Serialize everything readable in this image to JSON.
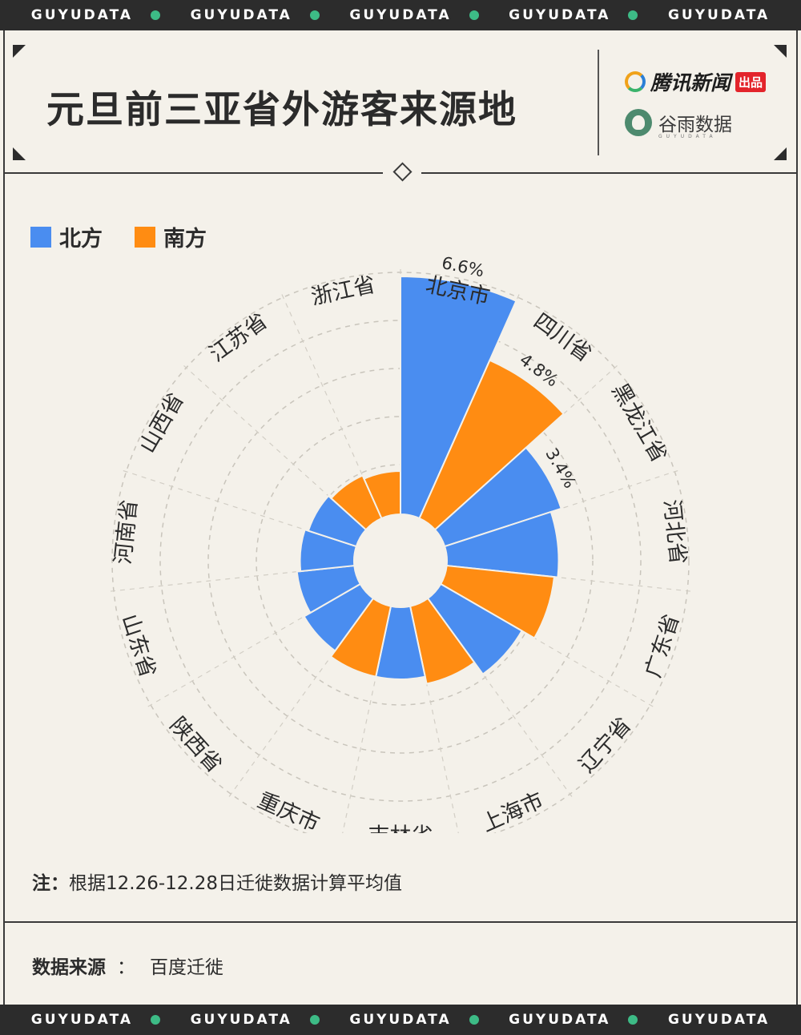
{
  "band_text": "GUYUDATA",
  "title": "元旦前三亚省外游客来源地",
  "logos": {
    "tencent": "腾讯新闻",
    "tencent_tag": "出品",
    "guyu": "谷雨数据",
    "guyu_sub": "GUYUDATA"
  },
  "colors": {
    "north": "#4a8df0",
    "south": "#ff8c12",
    "bg": "#f4f1ea",
    "band": "#2c2c2c",
    "band_dot": "#3dbb86"
  },
  "legend": [
    {
      "label": "北方",
      "color": "#4a8df0"
    },
    {
      "label": "南方",
      "color": "#ff8c12"
    }
  ],
  "chart_data": {
    "type": "polar-bar",
    "title": "元旦前三亚省外游客来源地",
    "unit": "%",
    "categories": [
      "北京市",
      "四川省",
      "黑龙江省",
      "河北省",
      "广东省",
      "辽宁省",
      "上海市",
      "吉林省",
      "重庆市",
      "陕西省",
      "山东省",
      "河南省",
      "山西省",
      "江苏省",
      "浙江省"
    ],
    "values": [
      6.6,
      4.8,
      3.4,
      3.1,
      3.0,
      2.6,
      2.2,
      2.0,
      2.0,
      1.8,
      1.6,
      1.5,
      1.4,
      1.3,
      1.2
    ],
    "region": [
      "北方",
      "南方",
      "北方",
      "北方",
      "南方",
      "北方",
      "南方",
      "北方",
      "南方",
      "北方",
      "北方",
      "北方",
      "北方",
      "南方",
      "南方"
    ],
    "labeled_values": [
      "6.6%",
      "4.8%",
      "3.4%"
    ],
    "grid": true
  },
  "note_key": "注：",
  "note": "根据12.26-12.28日迁徙数据计算平均值",
  "source_key": "数据来源",
  "source_sep": "：",
  "source": "百度迁徙"
}
